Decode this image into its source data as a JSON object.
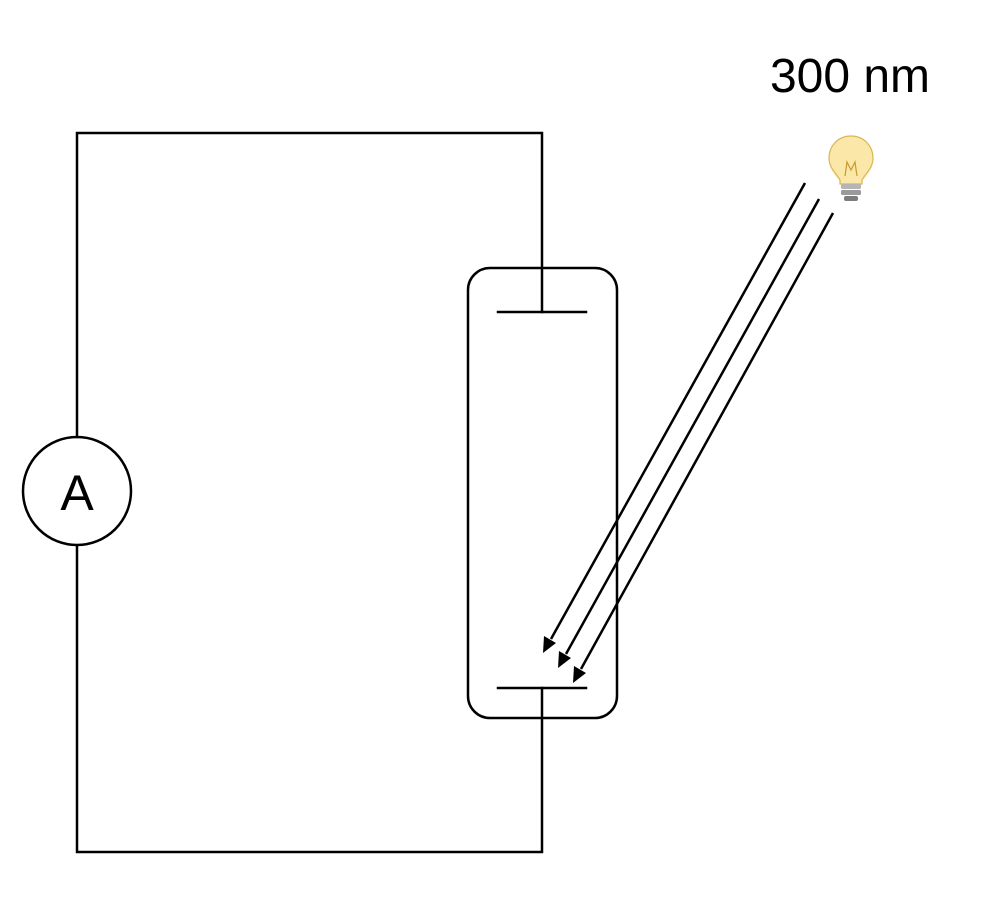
{
  "wavelength_label": "300 nm",
  "ammeter_label": "A",
  "icons": {
    "light_source": "light-bulb-icon"
  },
  "colors": {
    "line": "#000000",
    "background": "#ffffff",
    "bulb_glass": "#fbe7a8",
    "bulb_glow": "#fff6d6",
    "bulb_base": "#9a9a9a"
  }
}
